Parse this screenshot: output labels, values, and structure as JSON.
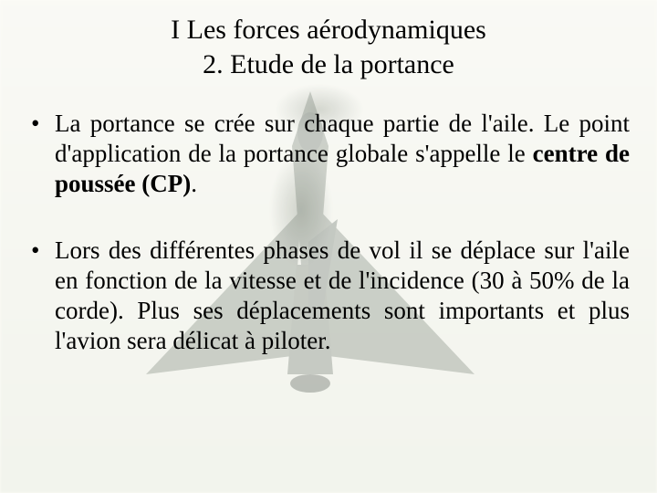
{
  "background": {
    "base_color": "#fdfdf9",
    "jet_fill": "#6b766b",
    "jet_opacity": 0.3
  },
  "title": {
    "line1": "I Les forces aérodynamiques",
    "line2": "2. Etude de la portance",
    "fontsize": 30,
    "align": "center",
    "color": "#000000"
  },
  "body": {
    "fontsize": 27,
    "align": "justify",
    "color": "#000000",
    "bullets": [
      {
        "runs": [
          {
            "text": "La portance se crée sur chaque partie de l'aile. Le point d'application de la portance globale s'appelle le ",
            "bold": false
          },
          {
            "text": "centre de poussée (CP)",
            "bold": true
          },
          {
            "text": ".",
            "bold": false
          }
        ]
      },
      {
        "runs": [
          {
            "text": "Lors des différentes phases de vol il se déplace sur l'aile en fonction de la vitesse et de l'incidence (30 à 50% de la corde). Plus ses déplacements sont importants et plus l'avion sera délicat à piloter.",
            "bold": false
          }
        ]
      }
    ]
  }
}
